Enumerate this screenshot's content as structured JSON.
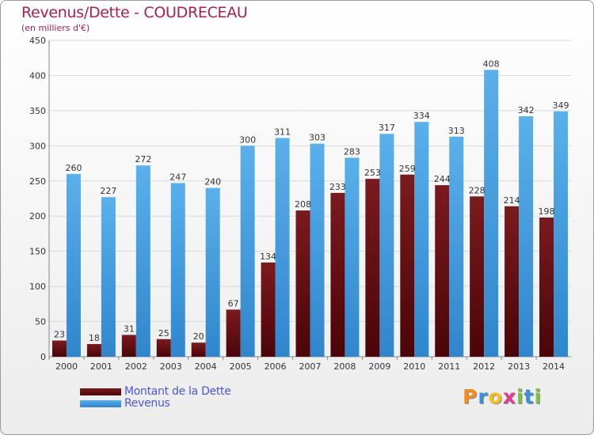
{
  "header": {
    "title": "Revenus/Dette - COUDRECEAU",
    "subtitle": "(en milliers d'€)"
  },
  "legend": {
    "dette": "Montant de la Dette",
    "revenus": "Revenus"
  },
  "logo": {
    "letters": [
      "P",
      "r",
      "o",
      "x",
      "i",
      "t",
      "i"
    ],
    "colors": [
      "#f28c1c",
      "#3d8fd6",
      "#f2c21c",
      "#e03c8c",
      "#7cc142",
      "#3d8fd6",
      "#7cc142"
    ]
  },
  "colors": {
    "dette": "#7a1a1e",
    "dette_dark": "#4a0508",
    "revenus": "#5ab0ea",
    "revenus_dark": "#2f86cc",
    "grid": "#d9d9d9",
    "axis_text": "#333333"
  },
  "chart_data": {
    "type": "bar",
    "title": "Revenus/Dette - COUDRECEAU",
    "subtitle": "(en milliers d'€)",
    "categories": [
      "2000",
      "2001",
      "2002",
      "2003",
      "2004",
      "2005",
      "2006",
      "2007",
      "2008",
      "2009",
      "2010",
      "2011",
      "2012",
      "2013",
      "2014"
    ],
    "series": [
      {
        "name": "Montant de la Dette",
        "values": [
          23,
          18,
          31,
          25,
          20,
          67,
          134,
          208,
          233,
          253,
          259,
          244,
          228,
          214,
          198
        ]
      },
      {
        "name": "Revenus",
        "values": [
          260,
          227,
          272,
          247,
          240,
          300,
          311,
          303,
          283,
          317,
          334,
          313,
          408,
          342,
          349
        ]
      }
    ],
    "ylim": [
      0,
      450
    ],
    "yticks": [
      "0",
      "50",
      "100",
      "150",
      "200",
      "250",
      "300",
      "350",
      "400",
      "450"
    ],
    "grid": true,
    "legend_position": "bottom-left"
  }
}
